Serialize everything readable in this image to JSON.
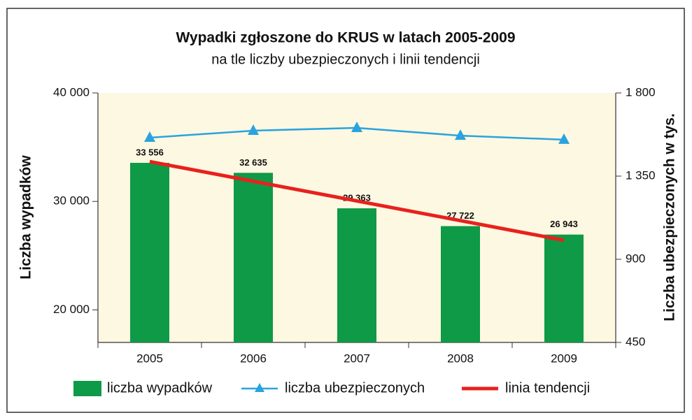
{
  "chart_data": {
    "type": "bar",
    "title": "Wypadki zgłoszone do KRUS w latach 2005-2009",
    "subtitle": "na tle liczby ubezpieczonych i linii tendencji",
    "ylabel": "Liczba wypadków",
    "y2label": "Liczba ubezpieczonych w tys.",
    "categories": [
      "2005",
      "2006",
      "2007",
      "2008",
      "2009"
    ],
    "series": [
      {
        "name": "liczba wypadków",
        "type": "bar",
        "color": "#0e9a46",
        "values": [
          33556,
          32635,
          29363,
          27722,
          26943
        ],
        "value_labels": [
          "33 556",
          "32 635",
          "29 363",
          "27 722",
          "26 943"
        ]
      },
      {
        "name": "liczba ubezpieczonych",
        "type": "line",
        "axis": "y2",
        "color": "#2aa3df",
        "values": [
          1558,
          1596,
          1611,
          1569,
          1547
        ]
      },
      {
        "name": "linia tendencji",
        "type": "line",
        "color": "#e8211d",
        "values": [
          33672,
          31858,
          30044,
          28230,
          26416
        ]
      }
    ],
    "ylim": [
      17000,
      40000
    ],
    "yticks": [
      {
        "value": 20000,
        "label": "20 000"
      },
      {
        "value": 30000,
        "label": "30 000"
      },
      {
        "value": 40000,
        "label": "40 000"
      }
    ],
    "y2lim": [
      450,
      1800
    ],
    "y2ticks": [
      450,
      900,
      {
        "value": 1350,
        "label": "1 350"
      },
      {
        "value": 1800,
        "label": "1 800"
      }
    ],
    "legend": "bottom"
  }
}
